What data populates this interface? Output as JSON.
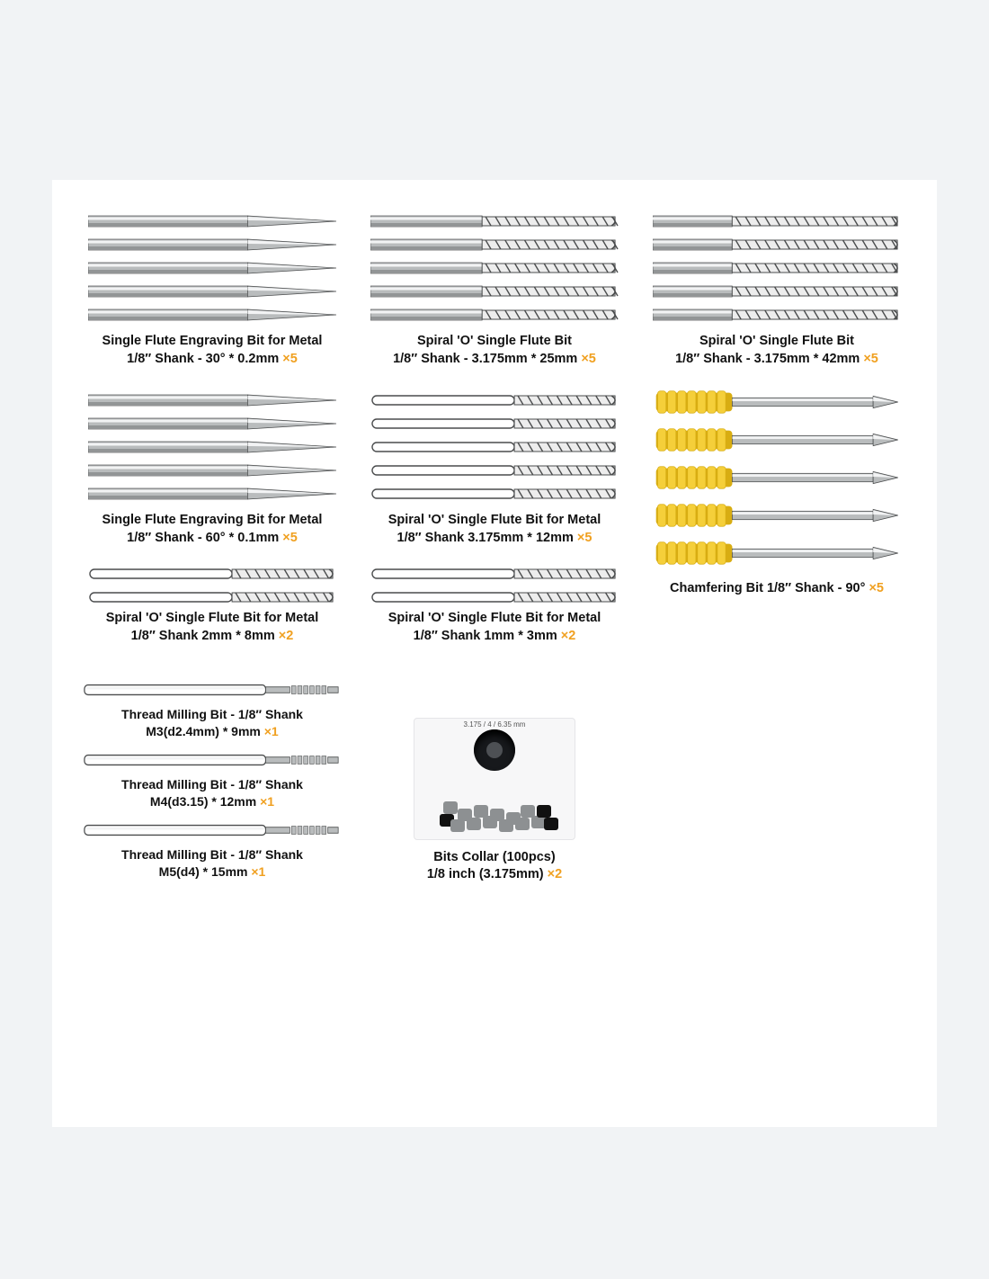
{
  "colors": {
    "qty": "#f0a020",
    "text": "#111111",
    "metal_light": "#f2f3f4",
    "metal_mid": "#b9bcbd",
    "metal_dark": "#6b6e70",
    "outline": "#4a4c4d",
    "flute_fill": "#ededed",
    "chamfer_yellow": "#f5cf3a",
    "chamfer_yellow_dark": "#d8ad12",
    "collar_black": "#17191c",
    "collar_grey": "#8d9092",
    "panel_bg": "#ffffff",
    "page_bg": "#f1f3f5"
  },
  "items": {
    "r1c1": {
      "title": "Single Flute Engraving Bit for Metal",
      "spec": "1/8″ Shank - 30° * 0.2mm",
      "qty": "×5",
      "count": 5,
      "kind": "engrave"
    },
    "r1c2": {
      "title": "Spiral 'O' Single Flute Bit",
      "spec": "1/8″ Shank - 3.175mm * 25mm",
      "qty": "×5",
      "count": 5,
      "kind": "spiral-long"
    },
    "r1c3": {
      "title": "Spiral 'O' Single Flute Bit",
      "spec": "1/8″ Shank - 3.175mm * 42mm",
      "qty": "×5",
      "count": 5,
      "kind": "spiral-xlong"
    },
    "r2c1": {
      "title": "Single Flute Engraving Bit for Metal",
      "spec": "1/8″ Shank - 60° * 0.1mm",
      "qty": "×5",
      "count": 5,
      "kind": "engrave"
    },
    "r2c2": {
      "title": "Spiral 'O' Single Flute Bit for Metal",
      "spec": "1/8″ Shank  3.175mm * 12mm",
      "qty": "×5",
      "count": 5,
      "kind": "spiral-short-open"
    },
    "r2c3": {
      "title": "Chamfering Bit  1/8″ Shank - 90°",
      "spec": "",
      "qty": "×5",
      "count": 5,
      "kind": "chamfer"
    },
    "r3c1": {
      "title": "Spiral 'O' Single Flute Bit for Metal",
      "spec": "1/8″ Shank  2mm * 8mm",
      "qty": "×2",
      "count": 2,
      "kind": "spiral-short-open"
    },
    "r3c2": {
      "title": "Spiral 'O' Single Flute Bit for Metal",
      "spec": "1/8″ Shank  1mm * 3mm",
      "qty": "×2",
      "count": 2,
      "kind": "spiral-short-open"
    },
    "thread1": {
      "title": "Thread Milling Bit - 1/8″ Shank",
      "spec": "M3(d2.4mm) * 9mm",
      "qty": "×1",
      "kind": "thread"
    },
    "thread2": {
      "title": "Thread Milling Bit - 1/8″ Shank",
      "spec": "M4(d3.15) * 12mm",
      "qty": "×1",
      "kind": "thread"
    },
    "thread3": {
      "title": "Thread Milling Bit - 1/8″ Shank",
      "spec": "M5(d4) * 15mm",
      "qty": "×1",
      "kind": "thread"
    },
    "collar": {
      "title": "Bits Collar (100pcs)",
      "spec": "1/8 inch (3.175mm)",
      "qty": "×2",
      "top_label": "3.175 / 4 / 6.35 mm"
    }
  }
}
